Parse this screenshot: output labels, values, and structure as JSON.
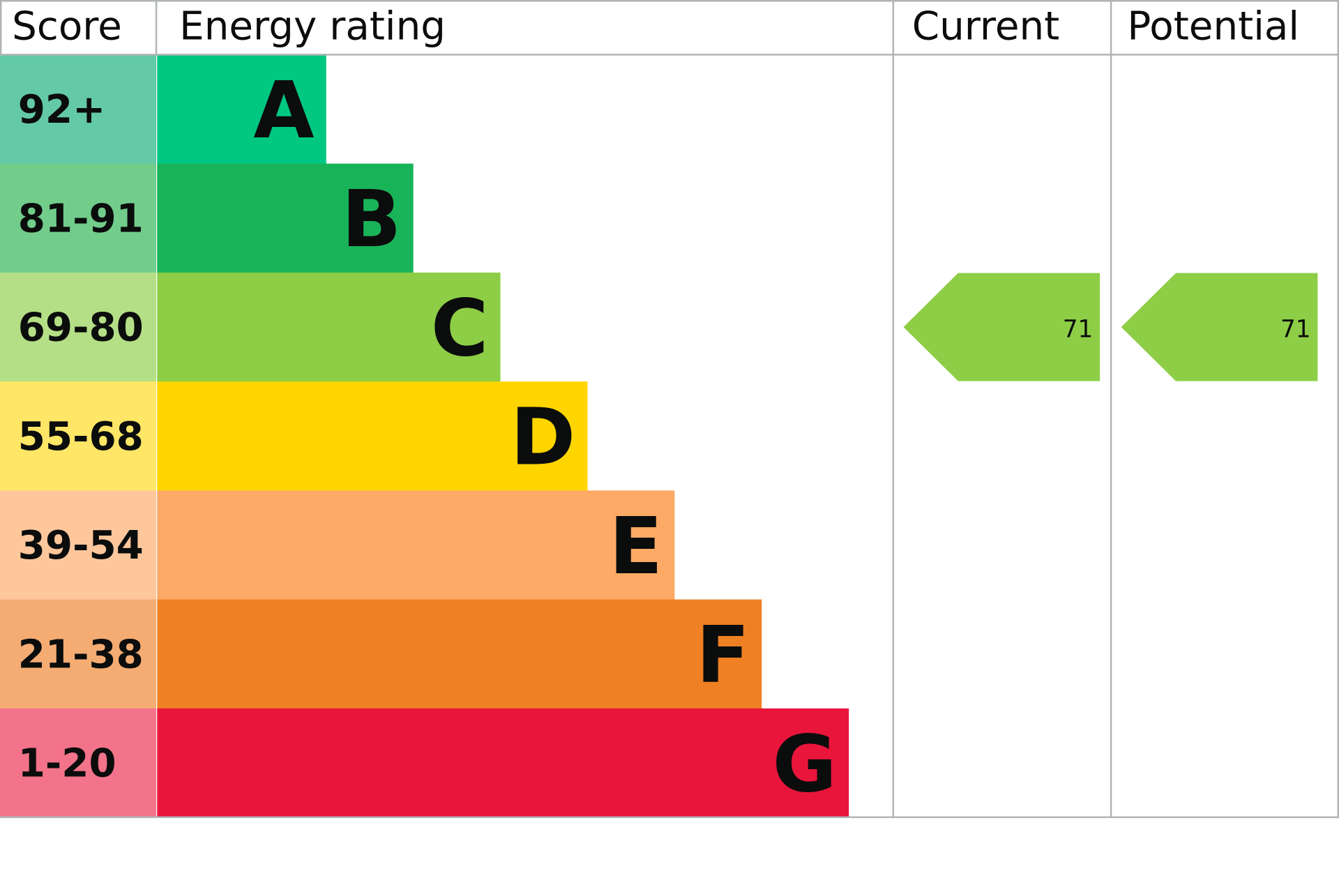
{
  "chart_data": {
    "type": "bar",
    "headers": {
      "score": "Score",
      "rating": "Energy rating",
      "current": "Current",
      "potential": "Potential"
    },
    "bands": [
      {
        "letter": "A",
        "range": "92+",
        "color": "#00c781",
        "score_color": "#64c9a6"
      },
      {
        "letter": "B",
        "range": "81-91",
        "color": "#19b459",
        "score_color": "#72cd8b"
      },
      {
        "letter": "C",
        "range": "69-80",
        "color": "#8dce46",
        "score_color": "#b4df86"
      },
      {
        "letter": "D",
        "range": "55-68",
        "color": "#ffd500",
        "score_color": "#ffe666"
      },
      {
        "letter": "E",
        "range": "39-54",
        "color": "#fcaa65",
        "score_color": "#fdc79b"
      },
      {
        "letter": "F",
        "range": "21-38",
        "color": "#ef8023",
        "score_color": "#f4ac73"
      },
      {
        "letter": "G",
        "range": "1-20",
        "color": "#e9153b",
        "score_color": "#f2738a"
      }
    ],
    "current": {
      "value": "71",
      "band": "C"
    },
    "potential": {
      "value": "71",
      "band": "C"
    }
  }
}
